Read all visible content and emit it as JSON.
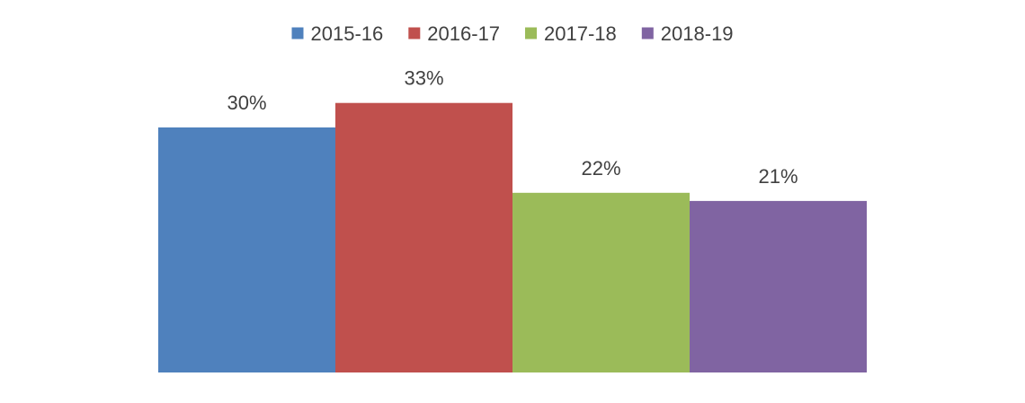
{
  "chart_data": {
    "type": "bar",
    "categories": [
      ""
    ],
    "series": [
      {
        "name": "2015-16",
        "values": [
          30
        ],
        "label": "30%",
        "color": "#4F81BD"
      },
      {
        "name": "2016-17",
        "values": [
          33
        ],
        "label": "33%",
        "color": "#C0504D"
      },
      {
        "name": "2017-18",
        "values": [
          22
        ],
        "label": "22%",
        "color": "#9BBB59"
      },
      {
        "name": "2018-19",
        "values": [
          21
        ],
        "label": "21%",
        "color": "#8064A2"
      }
    ],
    "unit": "%",
    "ylim": [
      0,
      36
    ],
    "title": "",
    "xlabel": "",
    "ylabel": "",
    "grid": false,
    "legend_position": "top-center"
  }
}
